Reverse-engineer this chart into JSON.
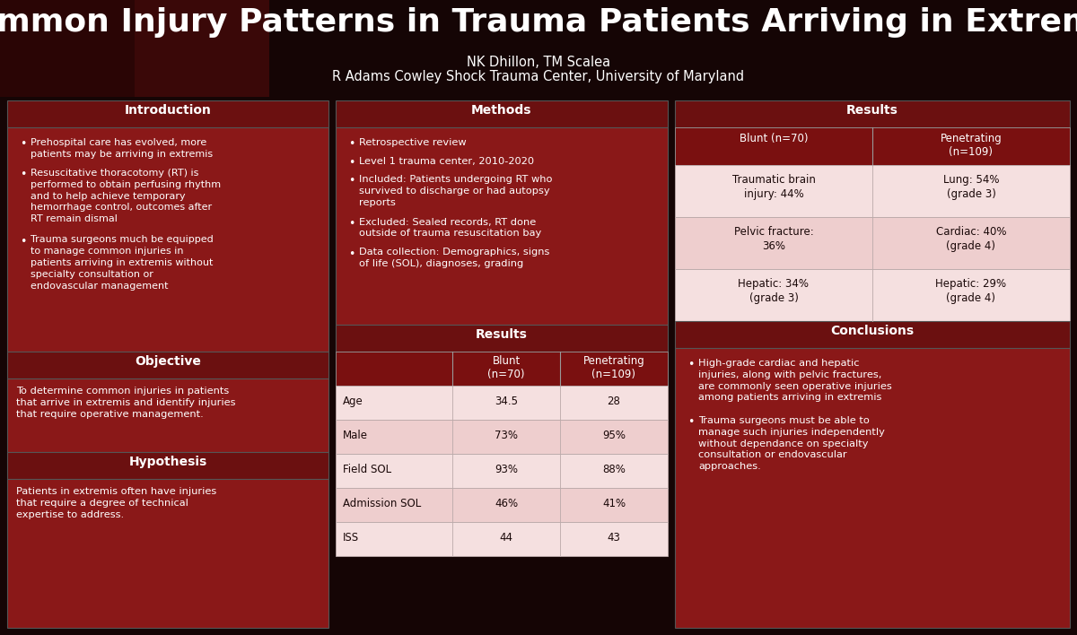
{
  "title": "Common Injury Patterns in Trauma Patients Arriving in Extremis",
  "subtitle1": "NK Dhillon, TM Scalea",
  "subtitle2": "R Adams Cowley Shock Trauma Center, University of Maryland",
  "bg_dark": "#150505",
  "dark_red_header": "#6b1010",
  "medium_red": "#7d1212",
  "body_red": "#8a1818",
  "light_pink1": "#f5e0e0",
  "light_pink2": "#eecece",
  "white": "#ffffff",
  "intro_title": "Introduction",
  "intro_bullets": [
    "Prehospital care has evolved, more\npatients may be arriving in extremis",
    "Resuscitative thoracotomy (RT) is\nperformed to obtain perfusing rhythm\nand to help achieve temporary\nhemorrhage control, outcomes after\nRT remain dismal",
    "Trauma surgeons much be equipped\nto manage common injuries in\npatients arriving in extremis without\nspecialty consultation or\nendovascular management"
  ],
  "objective_title": "Objective",
  "objective_text": "To determine common injuries in patients\nthat arrive in extremis and identify injuries\nthat require operative management.",
  "hypothesis_title": "Hypothesis",
  "hypothesis_text": "Patients in extremis often have injuries\nthat require a degree of technical\nexpertise to address.",
  "methods_title": "Methods",
  "methods_bullets": [
    "Retrospective review",
    "Level 1 trauma center, 2010-2020",
    "Included: Patients undergoing RT who\nsurvived to discharge or had autopsy\nreports",
    "Excluded: Sealed records, RT done\noutside of trauma resuscitation bay",
    "Data collection: Demographics, signs\nof life (SOL), diagnoses, grading"
  ],
  "results_title": "Results",
  "table_col_labels": [
    "Blunt\n(n=70)",
    "Penetrating\n(n=109)"
  ],
  "table_rows": [
    [
      "Age",
      "34.5",
      "28"
    ],
    [
      "Male",
      "73%",
      "95%"
    ],
    [
      "Field SOL",
      "93%",
      "88%"
    ],
    [
      "Admission SOL",
      "46%",
      "41%"
    ],
    [
      "ISS",
      "44",
      "43"
    ]
  ],
  "right_results_title": "Results",
  "right_col_labels": [
    "Blunt (n=70)",
    "Penetrating\n(n=109)"
  ],
  "right_table_rows": [
    [
      "Traumatic brain\ninjury: 44%",
      "Lung: 54%\n(grade 3)"
    ],
    [
      "Pelvic fracture:\n36%",
      "Cardiac: 40%\n(grade 4)"
    ],
    [
      "Hepatic: 34%\n(grade 3)",
      "Hepatic: 29%\n(grade 4)"
    ]
  ],
  "conclusions_title": "Conclusions",
  "conclusions_bullets": [
    "High-grade cardiac and hepatic\ninjuries, along with pelvic fractures,\nare commonly seen operative injuries\namong patients arriving in extremis",
    "Trauma surgeons must be able to\nmanage such injuries independently\nwithout dependance on specialty\nconsultation or endovascular\napproaches."
  ]
}
